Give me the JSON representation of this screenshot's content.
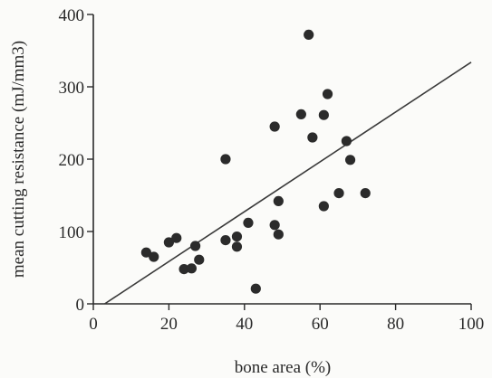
{
  "chart_data": {
    "type": "scatter",
    "title": "",
    "xlabel": "bone area (%)",
    "ylabel": "mean cutting resistance (mJ/mm3)",
    "xlim": [
      0,
      100
    ],
    "ylim": [
      0,
      400
    ],
    "xticks": [
      "0",
      "20",
      "40",
      "60",
      "80",
      "100"
    ],
    "yticks": [
      "0",
      "100",
      "200",
      "300",
      "400"
    ],
    "grid": false,
    "legend": "none",
    "points": [
      {
        "x": 14,
        "y": 71
      },
      {
        "x": 16,
        "y": 65
      },
      {
        "x": 20,
        "y": 85
      },
      {
        "x": 22,
        "y": 91
      },
      {
        "x": 24,
        "y": 48
      },
      {
        "x": 26,
        "y": 49
      },
      {
        "x": 27,
        "y": 80
      },
      {
        "x": 28,
        "y": 61
      },
      {
        "x": 35,
        "y": 200
      },
      {
        "x": 35,
        "y": 88
      },
      {
        "x": 38,
        "y": 79
      },
      {
        "x": 38,
        "y": 93
      },
      {
        "x": 41,
        "y": 112
      },
      {
        "x": 43,
        "y": 21
      },
      {
        "x": 48,
        "y": 245
      },
      {
        "x": 48,
        "y": 109
      },
      {
        "x": 49,
        "y": 142
      },
      {
        "x": 49,
        "y": 96
      },
      {
        "x": 55,
        "y": 262
      },
      {
        "x": 57,
        "y": 372
      },
      {
        "x": 58,
        "y": 230
      },
      {
        "x": 61,
        "y": 261
      },
      {
        "x": 61,
        "y": 135
      },
      {
        "x": 62,
        "y": 290
      },
      {
        "x": 65,
        "y": 153
      },
      {
        "x": 67,
        "y": 225
      },
      {
        "x": 68,
        "y": 199
      },
      {
        "x": 72,
        "y": 153
      }
    ],
    "regression_line": {
      "x": [
        3,
        100
      ],
      "y": [
        0,
        334
      ]
    },
    "colors": {
      "points": "#2b2b2b",
      "line": "#3a3a3a",
      "axis": "#2a2a2a"
    }
  }
}
